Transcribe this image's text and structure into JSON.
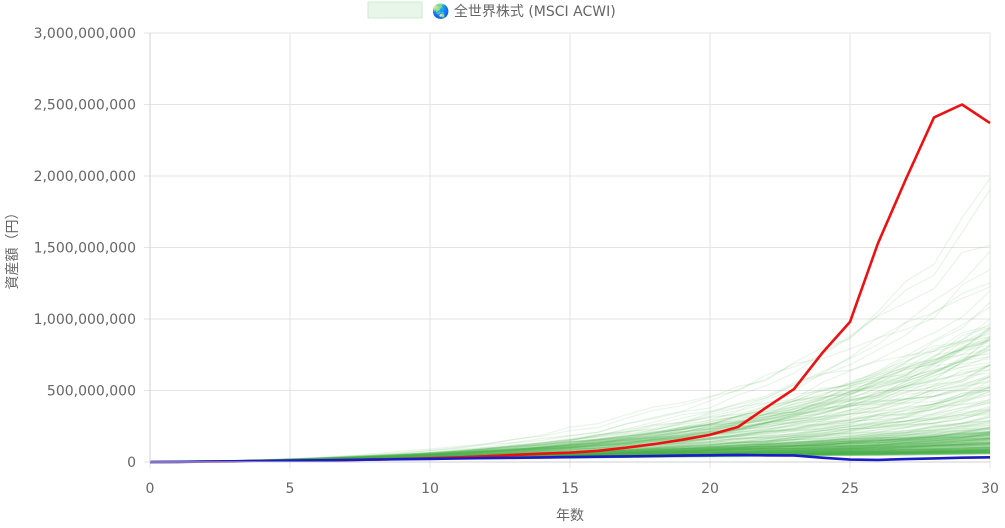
{
  "chart_data": {
    "type": "line",
    "title": "",
    "xlabel": "年数",
    "ylabel": "資産額（円）",
    "xlim": [
      0,
      30
    ],
    "ylim": [
      0,
      3000000000
    ],
    "x_ticks": [
      0,
      5,
      10,
      15,
      20,
      25,
      30
    ],
    "x_tick_labels": [
      "0",
      "5",
      "10",
      "15",
      "20",
      "25",
      "30"
    ],
    "y_ticks": [
      0,
      500000000,
      1000000000,
      1500000000,
      2000000000,
      2500000000,
      3000000000
    ],
    "y_tick_labels": [
      "0",
      "500,000,000",
      "1,000,000,000",
      "1,500,000,000",
      "2,000,000,000",
      "2,500,000,000",
      "3,000,000,000"
    ],
    "grid": true,
    "legend": {
      "position": "top-center",
      "entries": [
        {
          "label": "🌏 全世界株式 (MSCI ACWI)",
          "color": "#4caf50",
          "fill": "#e8f5e9"
        }
      ]
    },
    "x": [
      0,
      1,
      2,
      3,
      4,
      5,
      6,
      7,
      8,
      9,
      10,
      11,
      12,
      13,
      14,
      15,
      16,
      17,
      18,
      19,
      20,
      21,
      22,
      23,
      24,
      25,
      26,
      27,
      28,
      29,
      30
    ],
    "ensemble": {
      "name": "🌏 全世界株式 (MSCI ACWI)",
      "color": "#4caf50",
      "count": 300,
      "note_percentiles": "per-year percentile envelope of the simulated paths, in yen",
      "p05": [
        0,
        1800000,
        3500000,
        5500000,
        7500000,
        9500000,
        12000000,
        14000000,
        17000000,
        19000000,
        22000000,
        24000000,
        26000000,
        28000000,
        30000000,
        32000000,
        34000000,
        36000000,
        38000000,
        40000000,
        42000000,
        44000000,
        46000000,
        48000000,
        50000000,
        52000000,
        54000000,
        56000000,
        58000000,
        60000000,
        62000000
      ],
      "p50": [
        0,
        2000000,
        4200000,
        6800000,
        9500000,
        12500000,
        16000000,
        19500000,
        23500000,
        28000000,
        32500000,
        37500000,
        43000000,
        48500000,
        54500000,
        61000000,
        68000000,
        75000000,
        83000000,
        91000000,
        100000000,
        110000000,
        120000000,
        130000000,
        142000000,
        155000000,
        168000000,
        182000000,
        198000000,
        215000000,
        235000000
      ],
      "p95": [
        0,
        2300000,
        5200000,
        8800000,
        13000000,
        18000000,
        24000000,
        31000000,
        39000000,
        48000000,
        58000000,
        70000000,
        83000000,
        98000000,
        115000000,
        135000000,
        157000000,
        182000000,
        210000000,
        242000000,
        278000000,
        318000000,
        363000000,
        413000000,
        470000000,
        533000000,
        603000000,
        682000000,
        770000000,
        865000000,
        970000000
      ],
      "max": [
        0,
        2500000,
        6000000,
        10500000,
        16000000,
        23000000,
        32000000,
        43000000,
        56000000,
        72000000,
        91000000,
        114000000,
        141000000,
        172000000,
        208000000,
        250000000,
        298000000,
        352000000,
        412000000,
        480000000,
        556000000,
        640000000,
        735000000,
        840000000,
        955000000,
        1080000000,
        1220000000,
        1380000000,
        1600000000,
        1930000000,
        2150000000
      ]
    },
    "series": [
      {
        "name": "",
        "color": "#ee1111",
        "values": [
          0,
          1000000,
          2500000,
          4000000,
          6000000,
          8000000,
          10500000,
          13500000,
          17000000,
          21000000,
          26000000,
          32000000,
          40000000,
          50000000,
          58000000,
          65000000,
          78000000,
          100000000,
          125000000,
          155000000,
          190000000,
          245000000,
          380000000,
          510000000,
          760000000,
          980000000,
          1530000000,
          1980000000,
          2410000000,
          2500000000,
          2370000000
        ]
      },
      {
        "name": "",
        "color": "#1c1cc4",
        "values": [
          0,
          1500000,
          3200000,
          5000000,
          7000000,
          9500000,
          12000000,
          14500000,
          17000000,
          19500000,
          22000000,
          24500000,
          27000000,
          29500000,
          32000000,
          34500000,
          37000000,
          39500000,
          42000000,
          44500000,
          47000000,
          49500000,
          47000000,
          46000000,
          30000000,
          17000000,
          15000000,
          20000000,
          25000000,
          30000000,
          33000000
        ]
      }
    ]
  }
}
